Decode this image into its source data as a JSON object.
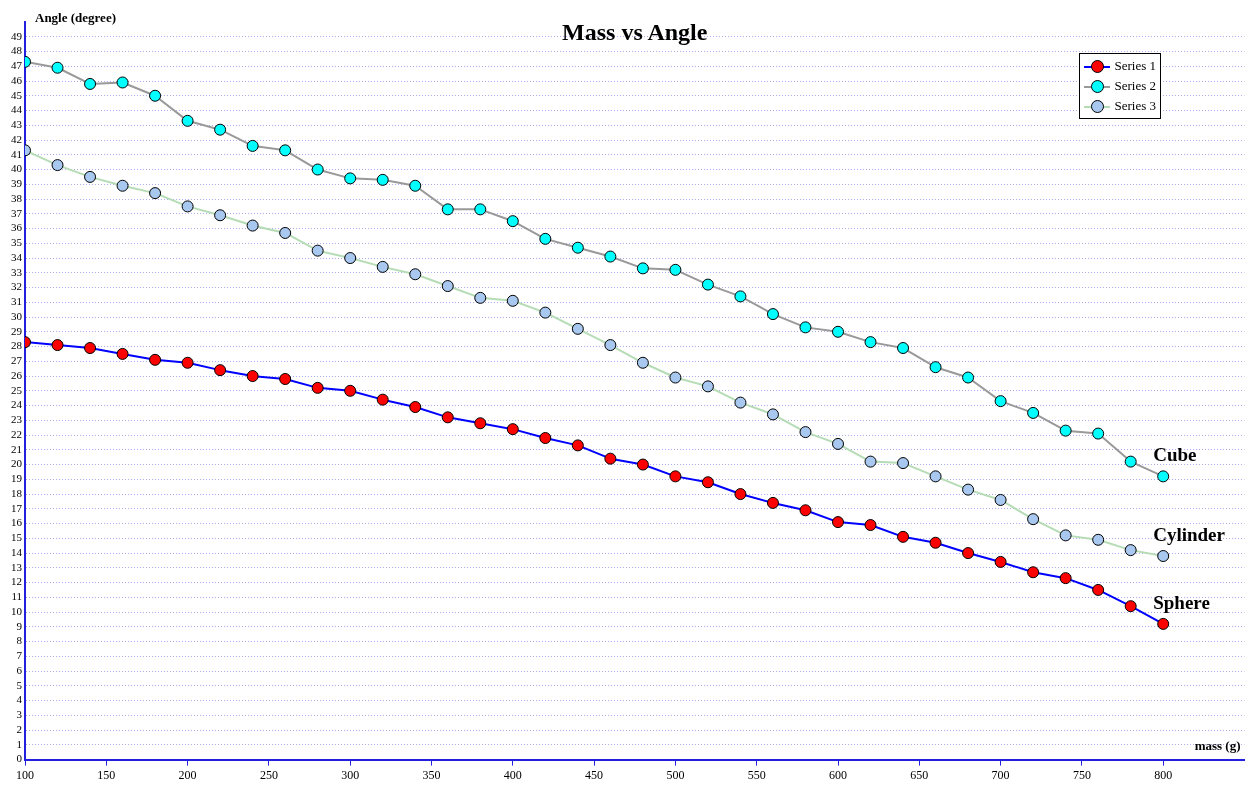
{
  "chart_data": {
    "type": "line",
    "title": "Mass vs Angle",
    "xlabel": "mass (g)",
    "ylabel": "Angle (degree)",
    "x": [
      100,
      120,
      140,
      160,
      180,
      200,
      220,
      240,
      260,
      280,
      300,
      320,
      340,
      360,
      380,
      400,
      420,
      440,
      460,
      480,
      500,
      520,
      540,
      560,
      580,
      600,
      620,
      640,
      660,
      680,
      700,
      720,
      740,
      760,
      780,
      800
    ],
    "series": [
      {
        "name": "Series 1",
        "color": "#0000ff",
        "colors": [
          "#ff0000",
          "#ff0000",
          "#ff0000",
          "#ff0000",
          "#ff0000",
          "#ff0000",
          "#ff0000",
          "#ff0000",
          "#ff0000",
          "#ff0000",
          "#ff0000",
          "#ff0000",
          "#ff0000",
          "#ff0000",
          "#ff0000",
          "#ff0000",
          "#ff0000",
          "#ff0000",
          "#ff0000",
          "#ff0000",
          "#ff0000",
          "#ff0000",
          "#ff0000",
          "#ff0000",
          "#ff0000",
          "#ff0000",
          "#ff0000",
          "#ff0000",
          "#ff0000",
          "#ff0000",
          "#ff0000",
          "#ff0000",
          "#ff0000",
          "#ff0000",
          "#ff0000",
          "#ff0000"
        ],
        "values": [
          28.3,
          28.1,
          27.9,
          27.5,
          27.1,
          26.9,
          26.4,
          26.0,
          25.8,
          25.2,
          25.0,
          24.4,
          23.9,
          23.2,
          22.8,
          22.4,
          21.8,
          21.3,
          20.4,
          20.0,
          19.2,
          18.8,
          18.0,
          17.4,
          16.9,
          16.1,
          15.9,
          15.1,
          14.7,
          14.0,
          13.4,
          12.7,
          12.3,
          11.5,
          10.4,
          9.2
        ]
      },
      {
        "name": "Series 2",
        "color": "#999999",
        "colors": [
          "#00ffff",
          "#00ffff",
          "#00ffff",
          "#00ffff",
          "#00ffff",
          "#00ffff",
          "#00ffff",
          "#00ffff",
          "#00ffff",
          "#00ffff",
          "#00ffff",
          "#00ffff",
          "#00ffff",
          "#00ffff",
          "#00ffff",
          "#00ffff",
          "#00ffff",
          "#00ffff",
          "#00ffff",
          "#00ffff",
          "#00ffff",
          "#00ffff",
          "#00ffff",
          "#00ffff",
          "#00ffff",
          "#00ffff",
          "#00ffff",
          "#00ffff",
          "#00ffff",
          "#00ffff",
          "#00ffff",
          "#00ffff",
          "#00ffff",
          "#00ffff",
          "#00ffff",
          "#00ffff"
        ],
        "values": [
          47.3,
          46.9,
          45.8,
          45.9,
          45.0,
          43.3,
          42.7,
          41.6,
          41.3,
          40.0,
          39.4,
          39.3,
          38.9,
          37.3,
          37.3,
          36.5,
          35.3,
          34.7,
          34.1,
          33.3,
          33.2,
          32.2,
          31.4,
          30.2,
          29.3,
          29.0,
          28.3,
          27.9,
          26.6,
          25.9,
          24.3,
          23.5,
          22.3,
          22.1,
          20.2,
          19.2
        ]
      },
      {
        "name": "Series 3",
        "color": "#b5dcb5",
        "colors": [
          "#a8c8f0",
          "#a8c8f0",
          "#a8c8f0",
          "#a8c8f0",
          "#a8c8f0",
          "#a8c8f0",
          "#a8c8f0",
          "#a8c8f0",
          "#a8c8f0",
          "#a8c8f0",
          "#a8c8f0",
          "#a8c8f0",
          "#a8c8f0",
          "#a8c8f0",
          "#a8c8f0",
          "#a8c8f0",
          "#a8c8f0",
          "#a8c8f0",
          "#a8c8f0",
          "#a8c8f0",
          "#a8c8f0",
          "#a8c8f0",
          "#a8c8f0",
          "#a8c8f0",
          "#a8c8f0",
          "#a8c8f0",
          "#a8c8f0",
          "#a8c8f0",
          "#a8c8f0",
          "#a8c8f0",
          "#a8c8f0",
          "#a8c8f0",
          "#a8c8f0",
          "#a8c8f0",
          "#a8c8f0",
          "#a8c8f0"
        ],
        "values": [
          41.3,
          40.3,
          39.5,
          38.9,
          38.4,
          37.5,
          36.9,
          36.2,
          35.7,
          34.5,
          34.0,
          33.4,
          32.9,
          32.1,
          31.3,
          31.1,
          30.3,
          29.2,
          28.1,
          26.9,
          25.9,
          25.3,
          24.2,
          23.4,
          22.2,
          21.4,
          20.2,
          20.1,
          19.2,
          18.3,
          17.6,
          16.3,
          15.2,
          14.9,
          14.2,
          13.8
        ]
      }
    ],
    "annotations": [
      "Cube",
      "Cylinder",
      "Sphere"
    ],
    "xlim": [
      100,
      850
    ],
    "xticks": [
      100,
      150,
      200,
      250,
      300,
      350,
      400,
      450,
      500,
      550,
      600,
      650,
      700,
      750,
      800
    ],
    "ylim": [
      0,
      50
    ],
    "yticks": [
      0,
      1,
      2,
      3,
      4,
      5,
      6,
      7,
      8,
      9,
      10,
      11,
      12,
      13,
      14,
      15,
      16,
      17,
      18,
      19,
      20,
      21,
      22,
      23,
      24,
      25,
      26,
      27,
      28,
      29,
      30,
      31,
      32,
      33,
      34,
      35,
      36,
      37,
      38,
      39,
      40,
      41,
      42,
      43,
      44,
      45,
      46,
      47,
      48,
      49
    ],
    "grid": "y",
    "legend": "top right",
    "marker": "circle",
    "line_style": "solid"
  }
}
